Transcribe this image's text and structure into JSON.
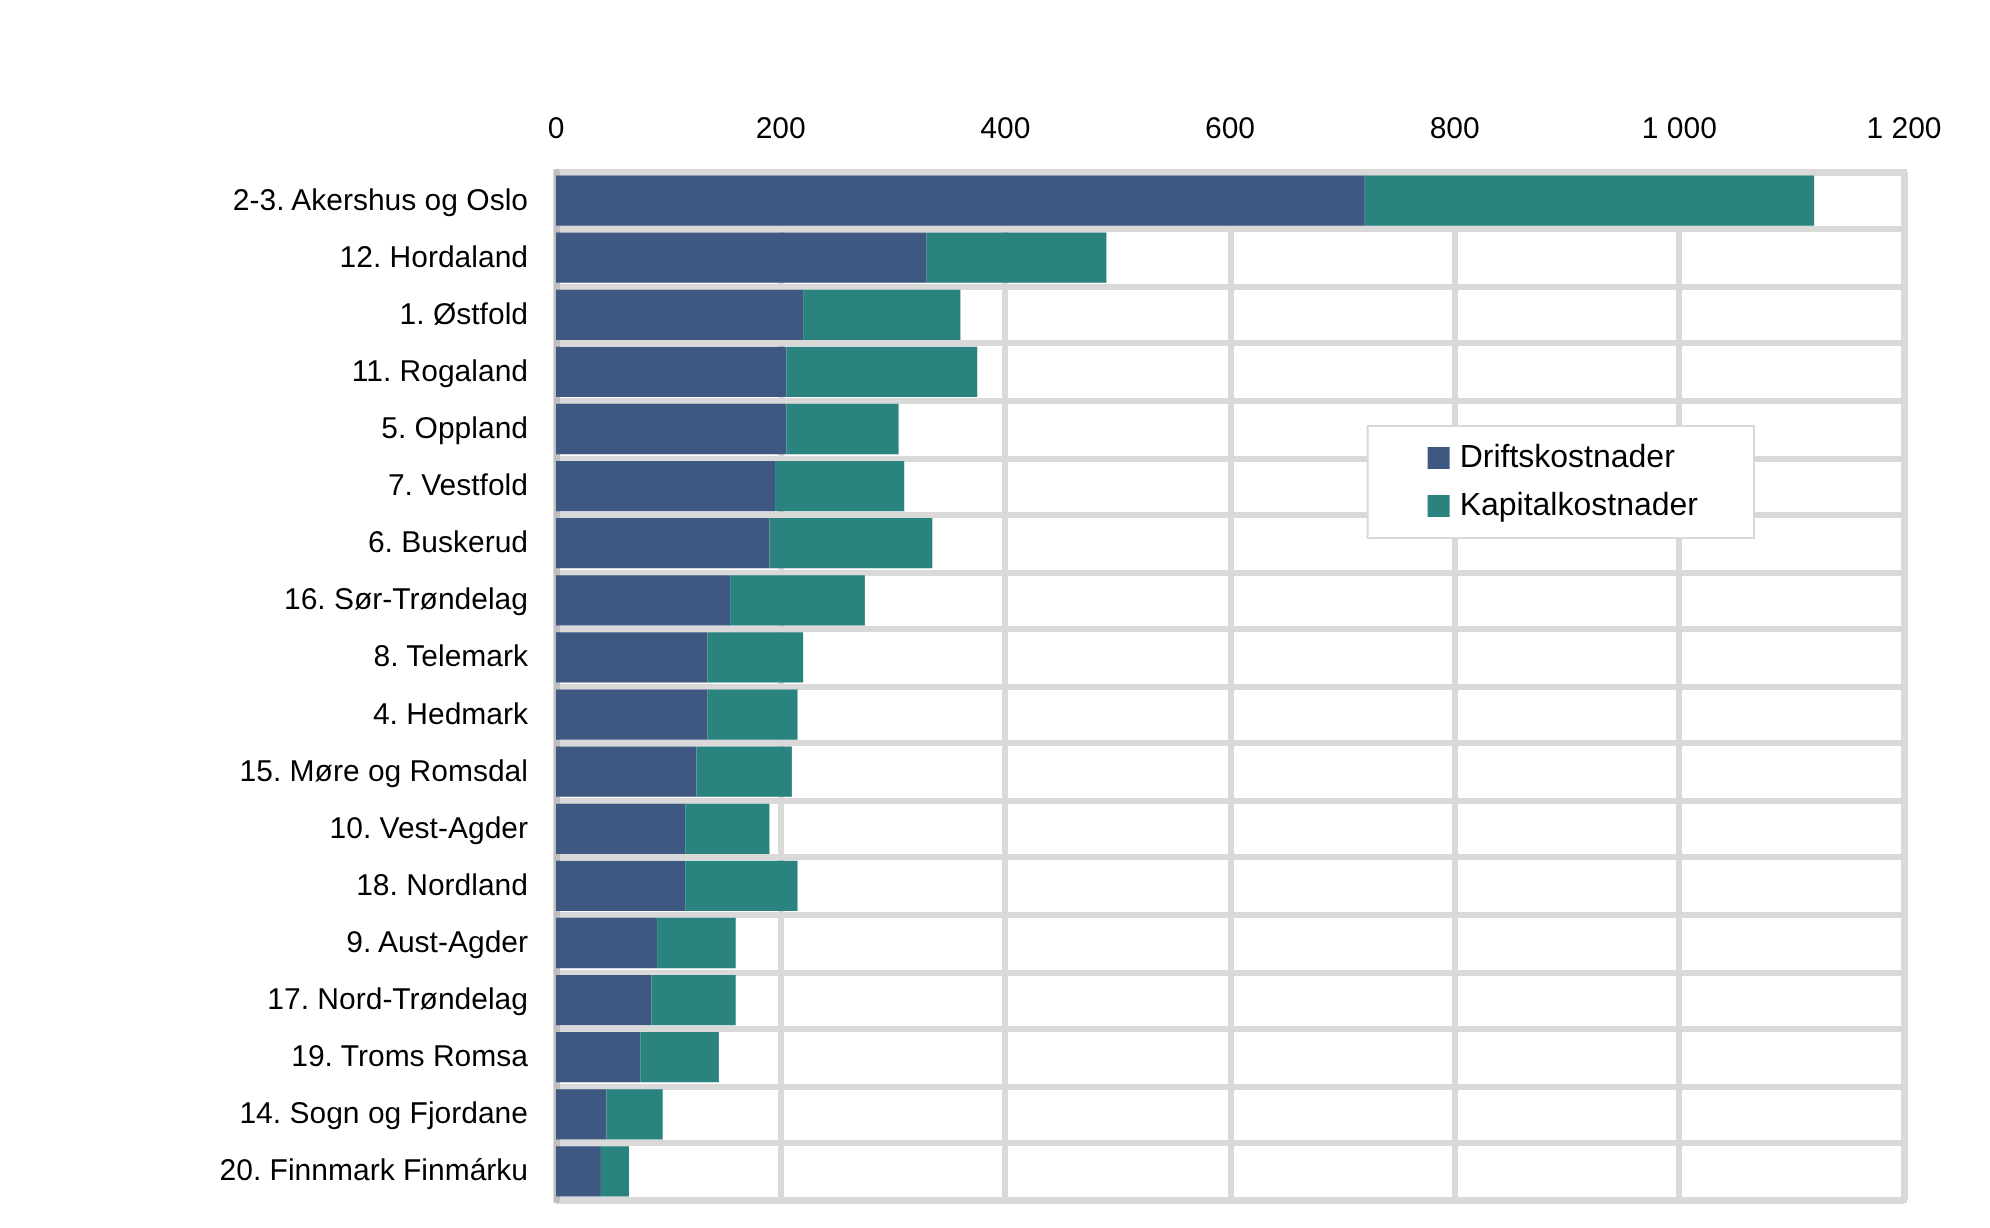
{
  "chart_data": {
    "type": "bar",
    "orientation": "horizontal",
    "stacked": true,
    "categories": [
      "2-3. Akershus og Oslo",
      "12. Hordaland",
      "1. Østfold",
      "11. Rogaland",
      "5. Oppland",
      "7. Vestfold",
      "6. Buskerud",
      "16. Sør-Trøndelag",
      "8. Telemark",
      "4. Hedmark",
      "15. Møre og Romsdal",
      "10. Vest-Agder",
      "18. Nordland",
      "9. Aust-Agder",
      "17. Nord-Trøndelag",
      "19. Troms Romsa",
      "14. Sogn og Fjordane",
      "20. Finnmark Finmárku"
    ],
    "series": [
      {
        "name": "Driftskostnader",
        "color": "#3f5882",
        "values": [
          720,
          330,
          220,
          205,
          205,
          195,
          190,
          155,
          135,
          135,
          125,
          115,
          115,
          90,
          85,
          75,
          45,
          40
        ]
      },
      {
        "name": "Kapitalkostnader",
        "color": "#2b8380",
        "values": [
          400,
          160,
          140,
          170,
          100,
          115,
          145,
          120,
          85,
          80,
          85,
          75,
          100,
          70,
          75,
          70,
          50,
          25
        ]
      }
    ],
    "xlim": [
      0,
      1200
    ],
    "xticks": [
      0,
      200,
      400,
      600,
      800,
      {
        "value": 1000,
        "label": "1 000"
      },
      {
        "value": 1200,
        "label": "1 200"
      }
    ],
    "grid": true,
    "legend": "right"
  }
}
